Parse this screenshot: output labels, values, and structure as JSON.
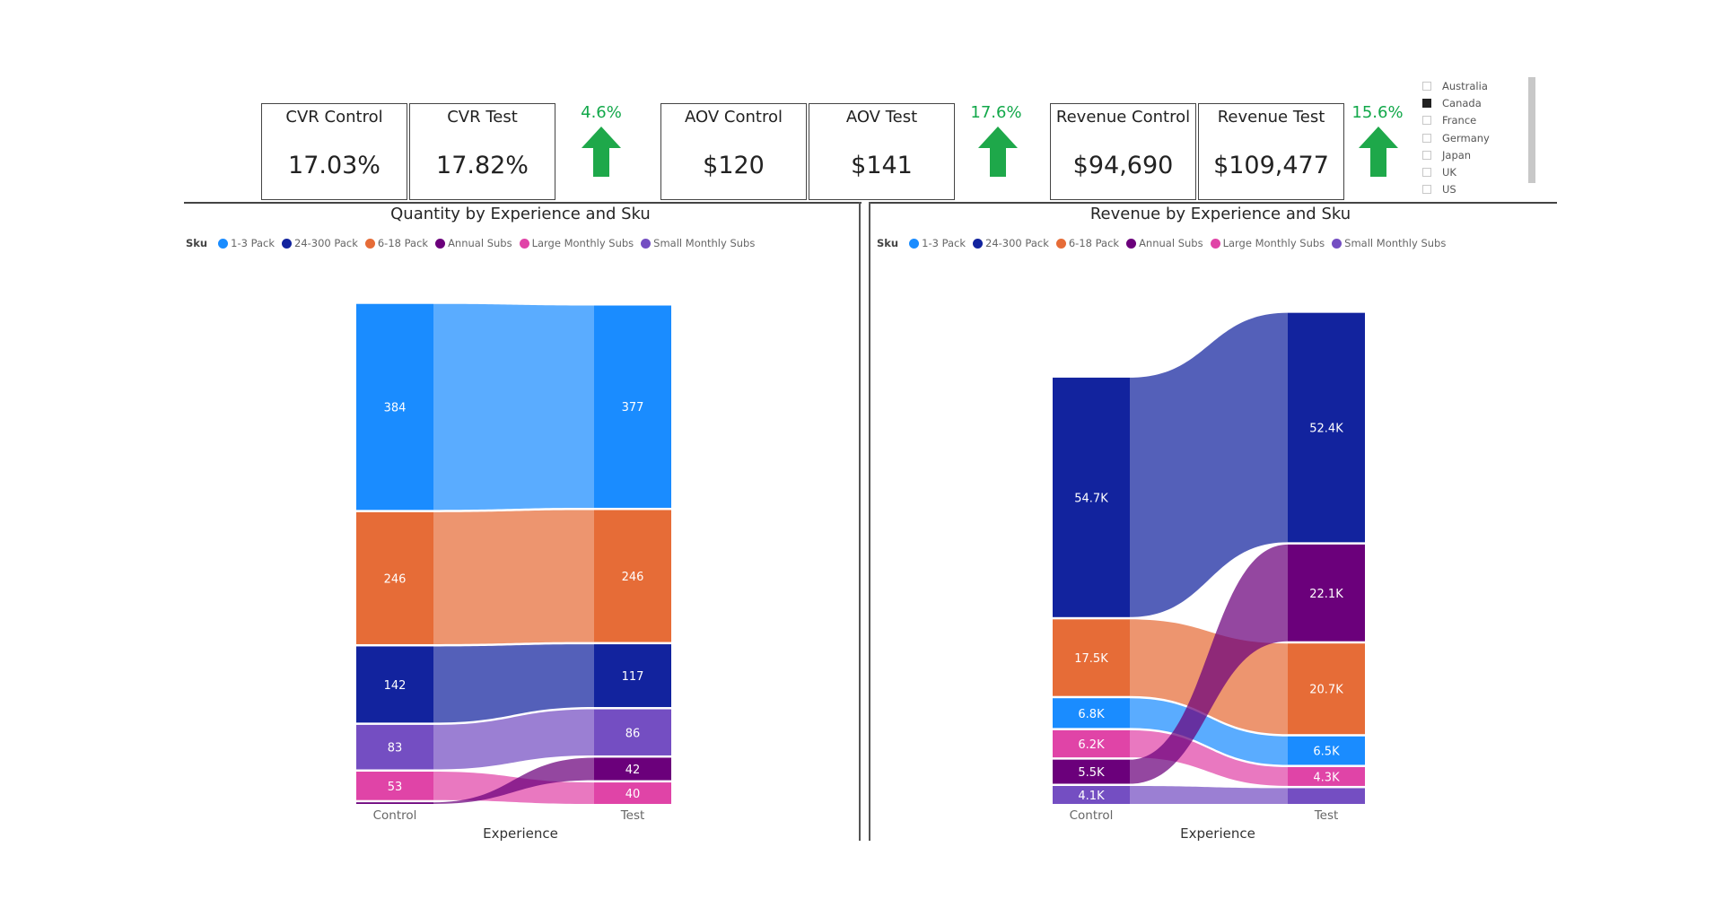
{
  "kpis": [
    {
      "label": "CVR Control",
      "value": "17.03%"
    },
    {
      "label": "CVR Test",
      "value": "17.82%"
    },
    {
      "label": "AOV Control",
      "value": "$120"
    },
    {
      "label": "AOV Test",
      "value": "$141"
    },
    {
      "label": "Revenue Control",
      "value": "$94,690"
    },
    {
      "label": "Revenue Test",
      "value": "$109,477"
    }
  ],
  "deltas": [
    {
      "value": "4.6%",
      "direction": "up"
    },
    {
      "value": "17.6%",
      "direction": "up"
    },
    {
      "value": "15.6%",
      "direction": "up"
    }
  ],
  "colors": {
    "up_arrow": "#1ea84a",
    "sku": {
      "1-3 Pack": "#1a8cff",
      "24-300 Pack": "#12239e",
      "6-18 Pack": "#e66c37",
      "Annual Subs": "#6b007b",
      "Large Monthly Subs": "#e044a7",
      "Small Monthly Subs": "#744ec2"
    }
  },
  "slicer": {
    "items": [
      {
        "label": "Australia",
        "checked": false
      },
      {
        "label": "Canada",
        "checked": true
      },
      {
        "label": "France",
        "checked": false
      },
      {
        "label": "Germany",
        "checked": false
      },
      {
        "label": "Japan",
        "checked": false
      },
      {
        "label": "UK",
        "checked": false
      },
      {
        "label": "US",
        "checked": false
      }
    ]
  },
  "legend": {
    "title": "Sku",
    "items": [
      "1-3 Pack",
      "24-300 Pack",
      "6-18 Pack",
      "Annual Subs",
      "Large Monthly Subs",
      "Small Monthly Subs"
    ]
  },
  "chart_data": [
    {
      "type": "ribbon",
      "title": "Quantity by Experience and Sku",
      "xlabel": "Experience",
      "categories": [
        "Control",
        "Test"
      ],
      "series": [
        {
          "name": "1-3 Pack",
          "values": [
            384,
            377
          ],
          "labels": [
            "384",
            "377"
          ]
        },
        {
          "name": "6-18 Pack",
          "values": [
            246,
            246
          ],
          "labels": [
            "246",
            "246"
          ]
        },
        {
          "name": "24-300 Pack",
          "values": [
            142,
            117
          ],
          "labels": [
            "142",
            "117"
          ]
        },
        {
          "name": "Small Monthly Subs",
          "values": [
            83,
            86
          ],
          "labels": [
            "83",
            "86"
          ]
        },
        {
          "name": "Large Monthly Subs",
          "values": [
            53,
            40
          ],
          "labels": [
            "53",
            "40"
          ]
        },
        {
          "name": "Annual Subs",
          "values": [
            3,
            42
          ],
          "labels": [
            "",
            "42"
          ]
        }
      ],
      "stack_order": [
        [
          "1-3 Pack",
          "6-18 Pack",
          "24-300 Pack",
          "Small Monthly Subs",
          "Large Monthly Subs",
          "Annual Subs"
        ],
        [
          "1-3 Pack",
          "6-18 Pack",
          "24-300 Pack",
          "Small Monthly Subs",
          "Annual Subs",
          "Large Monthly Subs"
        ]
      ]
    },
    {
      "type": "ribbon",
      "title": "Revenue by Experience and Sku",
      "xlabel": "Experience",
      "categories": [
        "Control",
        "Test"
      ],
      "series": [
        {
          "name": "24-300 Pack",
          "values": [
            54700,
            52400
          ],
          "labels": [
            "54.7K",
            "52.4K"
          ]
        },
        {
          "name": "6-18 Pack",
          "values": [
            17500,
            20700
          ],
          "labels": [
            "17.5K",
            "20.7K"
          ]
        },
        {
          "name": "1-3 Pack",
          "values": [
            6800,
            6500
          ],
          "labels": [
            "6.8K",
            "6.5K"
          ]
        },
        {
          "name": "Large Monthly Subs",
          "values": [
            6200,
            4300
          ],
          "labels": [
            "6.2K",
            "4.3K"
          ]
        },
        {
          "name": "Annual Subs",
          "values": [
            5500,
            22100
          ],
          "labels": [
            "5.5K",
            "22.1K"
          ]
        },
        {
          "name": "Small Monthly Subs",
          "values": [
            4100,
            3600
          ],
          "labels": [
            "4.1K",
            ""
          ]
        }
      ],
      "stack_order": [
        [
          "24-300 Pack",
          "6-18 Pack",
          "1-3 Pack",
          "Large Monthly Subs",
          "Annual Subs",
          "Small Monthly Subs"
        ],
        [
          "24-300 Pack",
          "Annual Subs",
          "6-18 Pack",
          "1-3 Pack",
          "Large Monthly Subs",
          "Small Monthly Subs"
        ]
      ]
    }
  ]
}
